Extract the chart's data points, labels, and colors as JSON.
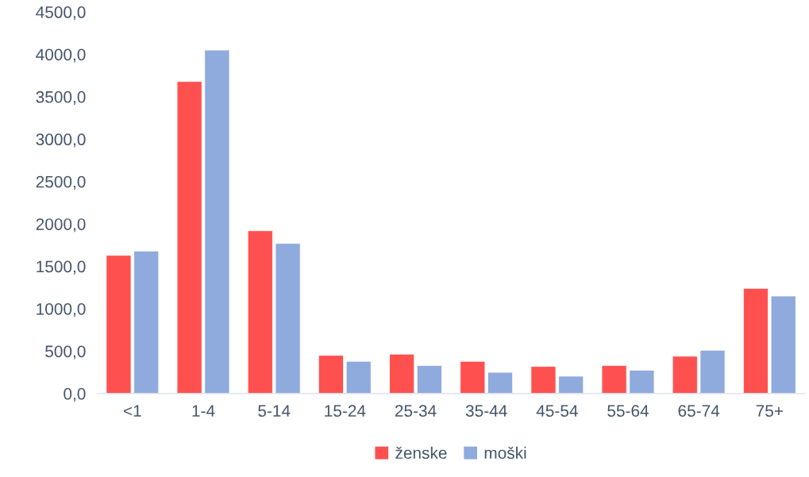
{
  "chart_data": {
    "type": "bar",
    "categories": [
      "<1",
      "1-4",
      "5-14",
      "15-24",
      "25-34",
      "35-44",
      "45-54",
      "55-64",
      "65-74",
      "75+"
    ],
    "series": [
      {
        "name": "ženske",
        "color": "#ff5050",
        "values": [
          1630,
          3680,
          1920,
          450,
          465,
          380,
          320,
          330,
          440,
          1240
        ]
      },
      {
        "name": "moški",
        "color": "#8faadc",
        "values": [
          1680,
          4050,
          1770,
          380,
          330,
          250,
          205,
          275,
          510,
          1150
        ]
      }
    ],
    "ylim": [
      0,
      4500
    ],
    "yticks": [
      {
        "value": 0,
        "label": "0,0"
      },
      {
        "value": 500,
        "label": "500,0"
      },
      {
        "value": 1000,
        "label": "1000,0"
      },
      {
        "value": 1500,
        "label": "1500,0"
      },
      {
        "value": 2000,
        "label": "2000,0"
      },
      {
        "value": 2500,
        "label": "2500,0"
      },
      {
        "value": 3000,
        "label": "3000,0"
      },
      {
        "value": 3500,
        "label": "3500,0"
      },
      {
        "value": 4000,
        "label": "4000,0"
      },
      {
        "value": 4500,
        "label": "4500,0"
      }
    ],
    "grid": false,
    "legend": "bottom"
  }
}
